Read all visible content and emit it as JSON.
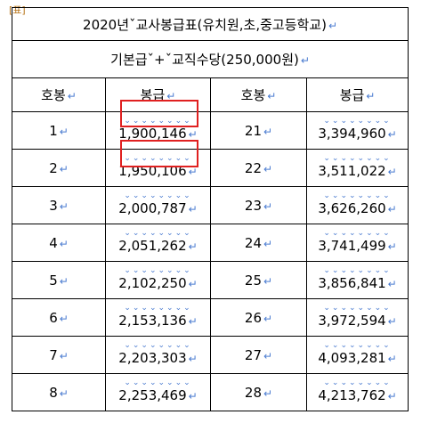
{
  "marker": "[표]",
  "return_mark": "↵",
  "dots": "⌄⌄⌄⌄⌄⌄⌄⌄",
  "title": "2020년ˇ교사봉급표(유치원,초,중고등학교)",
  "subtitle": "기본급ˇ+ˇ교직수당(250,000원)",
  "headers": [
    "호봉",
    "봉급",
    "호봉",
    "봉급"
  ],
  "rows": [
    {
      "step_a": "1",
      "salary_a": "1,900,146",
      "step_b": "21",
      "salary_b": "3,394,960"
    },
    {
      "step_a": "2",
      "salary_a": "1,950,106",
      "step_b": "22",
      "salary_b": "3,511,022"
    },
    {
      "step_a": "3",
      "salary_a": "2,000,787",
      "step_b": "23",
      "salary_b": "3,626,260"
    },
    {
      "step_a": "4",
      "salary_a": "2,051,262",
      "step_b": "24",
      "salary_b": "3,741,499"
    },
    {
      "step_a": "5",
      "salary_a": "2,102,250",
      "step_b": "25",
      "salary_b": "3,856,841"
    },
    {
      "step_a": "6",
      "salary_a": "2,153,136",
      "step_b": "26",
      "salary_b": "3,972,594"
    },
    {
      "step_a": "7",
      "salary_a": "2,203,303",
      "step_b": "27",
      "salary_b": "4,093,281"
    },
    {
      "step_a": "8",
      "salary_a": "2,253,469",
      "step_b": "28",
      "salary_b": "4,213,762"
    }
  ],
  "highlight_color": "#e02020",
  "mark_color": "#4a7bd0"
}
